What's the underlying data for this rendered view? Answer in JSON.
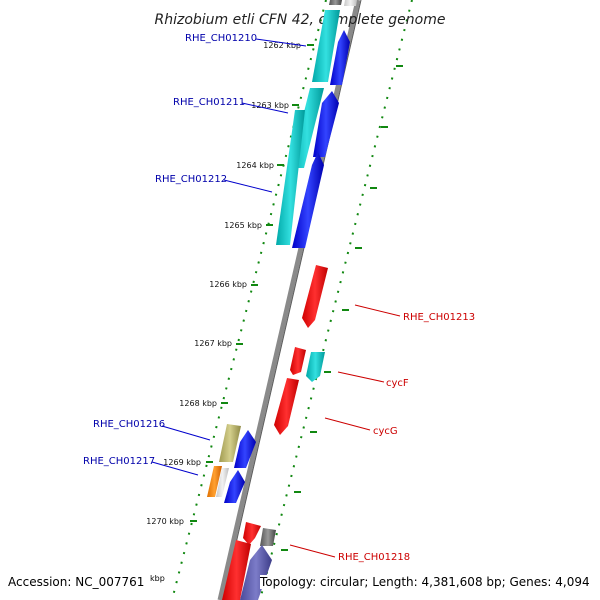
{
  "title": "Rhizobium etli CFN 42, complete genome",
  "ticks": [
    "1262 kbp",
    "1263 kbp",
    "1264 kbp",
    "1265 kbp",
    "1266 kbp",
    "1267 kbp",
    "1268 kbp",
    "1269 kbp",
    "1270 kbp"
  ],
  "genes": [
    {
      "name": "RHE_CH01210",
      "color": "#0000aa"
    },
    {
      "name": "RHE_CH01211",
      "color": "#0000aa"
    },
    {
      "name": "RHE_CH01212",
      "color": "#0000aa"
    },
    {
      "name": "RHE_CH01213",
      "color": "#cc0000"
    },
    {
      "name": "cycF",
      "color": "#cc0000"
    },
    {
      "name": "cycG",
      "color": "#cc0000"
    },
    {
      "name": "RHE_CH01216",
      "color": "#0000aa"
    },
    {
      "name": "RHE_CH01217",
      "color": "#0000aa"
    },
    {
      "name": "RHE_CH01218",
      "color": "#cc0000"
    }
  ],
  "footer": {
    "accession": "Accession: NC_007761",
    "accession_tick": "kbp",
    "stats": "Topology: circular; Length: 4,381,608 bp; Genes: 4,094"
  }
}
